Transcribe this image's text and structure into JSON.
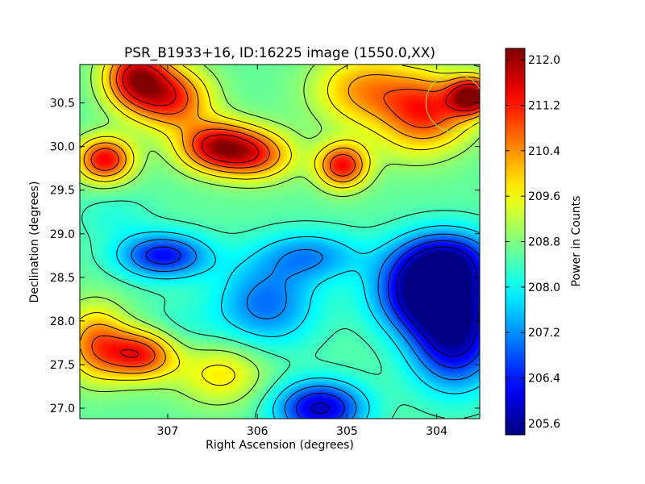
{
  "chart_data": {
    "type": "heatmap",
    "title": "PSR_B1933+16, ID:16225 image (1550.0,XX)",
    "xlabel": "Right Ascension (degrees)",
    "ylabel": "Declination (degrees)",
    "colorbar_label": "Power in Counts",
    "colormap": "jet",
    "xlim": [
      307.98,
      303.52
    ],
    "ylim": [
      26.88,
      30.94
    ],
    "x_ticks": [
      307,
      306,
      305,
      304
    ],
    "x_tick_labels": [
      "307",
      "306",
      "305",
      "304"
    ],
    "y_ticks": [
      27.0,
      27.5,
      28.0,
      28.5,
      29.0,
      29.5,
      30.0,
      30.5
    ],
    "y_tick_labels": [
      "27.0",
      "27.5",
      "28.0",
      "28.5",
      "29.0",
      "29.5",
      "30.0",
      "30.5"
    ],
    "clim": [
      205.4,
      212.2
    ],
    "colorbar_ticks": [
      205.6,
      206.4,
      207.2,
      208.0,
      208.8,
      209.6,
      210.4,
      211.2,
      212.0
    ],
    "colorbar_tick_labels": [
      "205.6",
      "206.4",
      "207.2",
      "208.0",
      "208.8",
      "209.6",
      "210.4",
      "211.2",
      "212.0"
    ],
    "contour_levels": [
      206.0,
      206.6,
      207.2,
      207.8,
      208.4,
      209.0,
      209.6,
      210.2,
      210.8,
      211.4
    ],
    "features": [
      {
        "ra": 307.35,
        "dec": 30.8,
        "value": 211.6,
        "sra": 0.25,
        "sdec": 0.25
      },
      {
        "ra": 306.95,
        "dec": 30.55,
        "value": 211.0,
        "sra": 0.3,
        "sdec": 0.25
      },
      {
        "ra": 306.45,
        "dec": 30.0,
        "value": 211.5,
        "sra": 0.3,
        "sdec": 0.2
      },
      {
        "ra": 306.0,
        "dec": 29.9,
        "value": 210.6,
        "sra": 0.3,
        "sdec": 0.2
      },
      {
        "ra": 307.7,
        "dec": 29.85,
        "value": 211.4,
        "sra": 0.22,
        "sdec": 0.18
      },
      {
        "ra": 305.05,
        "dec": 29.78,
        "value": 211.3,
        "sra": 0.2,
        "sdec": 0.18
      },
      {
        "ra": 303.6,
        "dec": 30.58,
        "value": 212.0,
        "sra": 0.18,
        "sdec": 0.15
      },
      {
        "ra": 304.1,
        "dec": 30.4,
        "value": 211.0,
        "sra": 0.35,
        "sdec": 0.3
      },
      {
        "ra": 304.8,
        "dec": 30.65,
        "value": 210.3,
        "sra": 0.4,
        "sdec": 0.3
      },
      {
        "ra": 307.3,
        "dec": 27.62,
        "value": 211.2,
        "sra": 0.28,
        "sdec": 0.2
      },
      {
        "ra": 307.8,
        "dec": 27.75,
        "value": 210.5,
        "sra": 0.25,
        "sdec": 0.3
      },
      {
        "ra": 307.05,
        "dec": 28.75,
        "value": 206.3,
        "sra": 0.35,
        "sdec": 0.18
      },
      {
        "ra": 304.1,
        "dec": 28.3,
        "value": 205.6,
        "sra": 0.4,
        "sdec": 0.3
      },
      {
        "ra": 303.8,
        "dec": 27.8,
        "value": 205.8,
        "sra": 0.35,
        "sdec": 0.4
      },
      {
        "ra": 303.9,
        "dec": 28.7,
        "value": 206.2,
        "sra": 0.4,
        "sdec": 0.25
      },
      {
        "ra": 305.3,
        "dec": 27.0,
        "value": 205.9,
        "sra": 0.35,
        "sdec": 0.22
      },
      {
        "ra": 305.9,
        "dec": 28.2,
        "value": 207.0,
        "sra": 0.4,
        "sdec": 0.35
      },
      {
        "ra": 305.4,
        "dec": 28.75,
        "value": 207.3,
        "sra": 0.4,
        "sdec": 0.2
      },
      {
        "ra": 304.4,
        "dec": 29.95,
        "value": 208.8,
        "sra": 0.3,
        "sdec": 0.22
      },
      {
        "ra": 305.6,
        "dec": 30.45,
        "value": 208.6,
        "sra": 0.35,
        "sdec": 0.25
      },
      {
        "ra": 306.9,
        "dec": 27.9,
        "value": 208.2,
        "sra": 0.35,
        "sdec": 0.25
      },
      {
        "ra": 306.4,
        "dec": 27.4,
        "value": 209.8,
        "sra": 0.35,
        "sdec": 0.25
      },
      {
        "ra": 307.6,
        "dec": 29.2,
        "value": 208.2,
        "sra": 0.3,
        "sdec": 0.2
      }
    ],
    "circle": {
      "ra": 303.8,
      "dec": 30.5,
      "radius_deg": 0.32,
      "color": "#a8e04a"
    }
  }
}
